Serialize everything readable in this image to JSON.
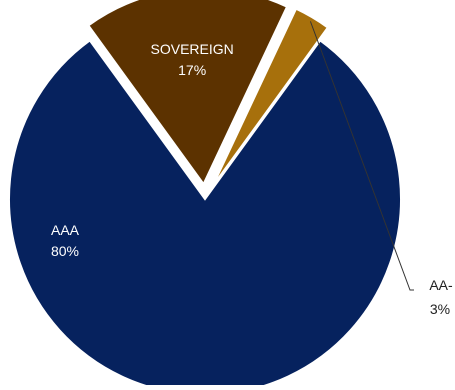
{
  "chart_data": {
    "type": "pie",
    "title": "",
    "slices": [
      {
        "label": "AAA",
        "value": 80,
        "value_label": "80%",
        "color": "#06225e",
        "label_color": "#ffffff",
        "label_placement": "inside",
        "exploded": false
      },
      {
        "label": "SOVEREIGN",
        "value": 17,
        "value_label": "17%",
        "color": "#5c3200",
        "label_color": "#ffffff",
        "label_placement": "inside",
        "exploded": true
      },
      {
        "label": "AA-",
        "value": 3,
        "value_label": "3%",
        "color": "#a7700c",
        "label_color": "#222222",
        "label_placement": "outside-leader",
        "exploded": true
      }
    ],
    "legend": "none",
    "background": "#ffffff"
  }
}
